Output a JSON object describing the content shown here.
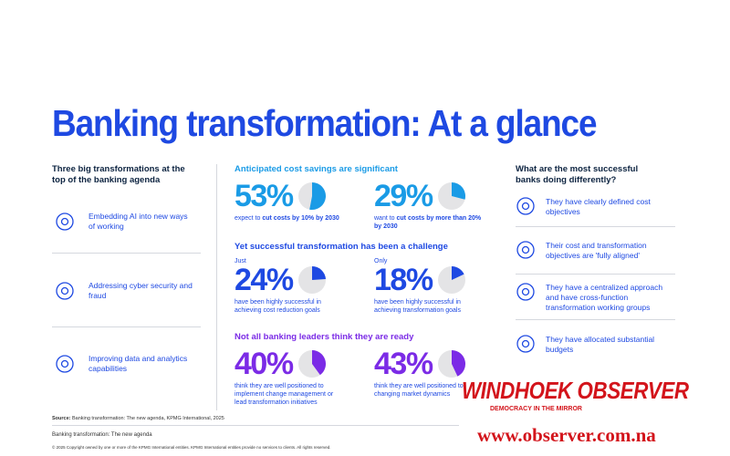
{
  "header": {
    "title": "Banking transformation: At a glance"
  },
  "left": {
    "heading": "Three big transformations at the top of the banking agenda",
    "items": [
      "Embedding AI into new ways of working",
      "Addressing cyber security and fraud",
      "Improving data and analytics capabilities"
    ]
  },
  "sections": [
    {
      "heading": "Anticipated cost savings are significant",
      "color": "#1a9be6",
      "stats": [
        {
          "value": 53,
          "label": "53%",
          "text": [
            "expect to ",
            "cut costs by 10% by 2030"
          ]
        },
        {
          "value": 29,
          "label": "29%",
          "text": [
            "want to ",
            "cut costs by more than 20% by 2030"
          ]
        }
      ]
    },
    {
      "heading": "Yet successful transformation has been a challenge",
      "color": "#1e49e2",
      "stats": [
        {
          "prefix": "Just",
          "value": 24,
          "label": "24%",
          "text": [
            "have been highly successful in achieving cost reduction goals"
          ]
        },
        {
          "prefix": "Only",
          "value": 18,
          "label": "18%",
          "text": [
            "have been highly successful in achieving transformation goals"
          ]
        }
      ]
    },
    {
      "heading": "Not all banking leaders think they are ready",
      "color": "#7b2be6",
      "stats": [
        {
          "value": 40,
          "label": "40%",
          "text": [
            "think they are well positioned to implement change management or lead transformation initiatives"
          ]
        },
        {
          "value": 43,
          "label": "43%",
          "text": [
            "think they are well positioned to changing market dynamics"
          ]
        }
      ]
    }
  ],
  "right": {
    "heading": "What are the most successful banks doing differently?",
    "items": [
      "They have clearly defined cost objectives",
      "Their cost and transformation objectives are 'fully aligned'",
      "They have a centralized approach and have cross-function transformation working groups",
      "They have allocated substantial budgets"
    ]
  },
  "footer": {
    "source_label": "Source:",
    "source": "Banking transformation: The new agenda, KPMG International, 2025",
    "subtitle": "Banking transformation: The new agenda",
    "copyright": "© 2025 Copyright owned by one or more of the KPMG International entities. KPMG International entities provide no services to clients. All rights reserved."
  },
  "watermark": {
    "brand": "WINDHOEK OBSERVER",
    "tagline": "DEMOCRACY IN THE MIRROR",
    "url": "www.observer.com.na"
  }
}
